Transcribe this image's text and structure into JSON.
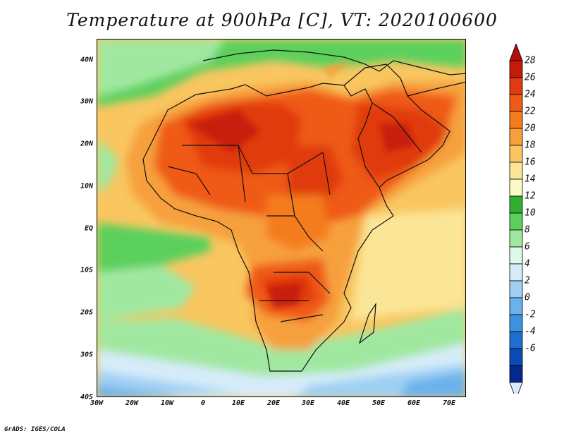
{
  "title": "Temperature at 900hPa [C], VT: 2020100600",
  "footer": "GrADS: IGES/COLA",
  "map": {
    "region": "Africa, Middle East and surrounding oceans",
    "variable": "Temperature at 900hPa",
    "units": "C",
    "lon_range": [
      -30,
      75
    ],
    "lat_range": [
      -40,
      45
    ],
    "x_ticks": [
      "30W",
      "20W",
      "10W",
      "0",
      "10E",
      "20E",
      "30E",
      "40E",
      "50E",
      "60E",
      "70E"
    ],
    "y_ticks": [
      "40N",
      "30N",
      "20N",
      "10N",
      "EQ",
      "10S",
      "20S",
      "30S",
      "40S"
    ]
  },
  "colorbar": {
    "labels": [
      "28",
      "26",
      "24",
      "22",
      "20",
      "18",
      "16",
      "14",
      "12",
      "10",
      "8",
      "6",
      "4",
      "2",
      "0",
      "-2",
      "-4",
      "-6"
    ],
    "colors": [
      "#c41a0c",
      "#e03a10",
      "#ef5a16",
      "#f47c1e",
      "#f6a03c",
      "#f9c660",
      "#fbe596",
      "#fdfac8",
      "#30b030",
      "#5cd05c",
      "#a0e8a0",
      "#e0f8e8",
      "#d6ecf9",
      "#9fd0f4",
      "#6ab2ec",
      "#3c92e0",
      "#1f6fd0",
      "#0a4cb4",
      "#04288c"
    ],
    "top_arrow_color": "#b01008",
    "bottom_arrow_color": "#dde7ff"
  }
}
